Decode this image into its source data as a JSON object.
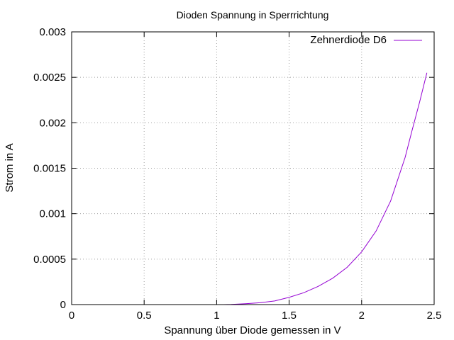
{
  "chart_data": {
    "type": "line",
    "title": "Dioden Spannung in Sperrrichtung",
    "xlabel": "Spannung über Diode gemessen in V",
    "ylabel": "Strom in A",
    "xlim": [
      0,
      2.5
    ],
    "ylim": [
      0,
      0.003
    ],
    "x_ticks": [
      "0",
      "0.5",
      "1",
      "1.5",
      "2",
      "2.5"
    ],
    "y_ticks": [
      "0",
      "0.0005",
      "0.001",
      "0.0015",
      "0.002",
      "0.0025",
      "0.003"
    ],
    "grid": true,
    "legend_position": "top-right",
    "series": [
      {
        "name": "Zehnerdiode D6",
        "color": "#9400d3",
        "x": [
          1.05,
          1.1,
          1.2,
          1.3,
          1.4,
          1.5,
          1.6,
          1.7,
          1.8,
          1.9,
          2.0,
          2.1,
          2.2,
          2.3,
          2.35,
          2.4,
          2.45
        ],
        "y": [
          0,
          2e-06,
          1e-05,
          2e-05,
          4e-05,
          8e-05,
          0.00013,
          0.0002,
          0.00029,
          0.00041,
          0.00058,
          0.00081,
          0.00114,
          0.00162,
          0.00193,
          0.00223,
          0.00255
        ]
      }
    ]
  }
}
